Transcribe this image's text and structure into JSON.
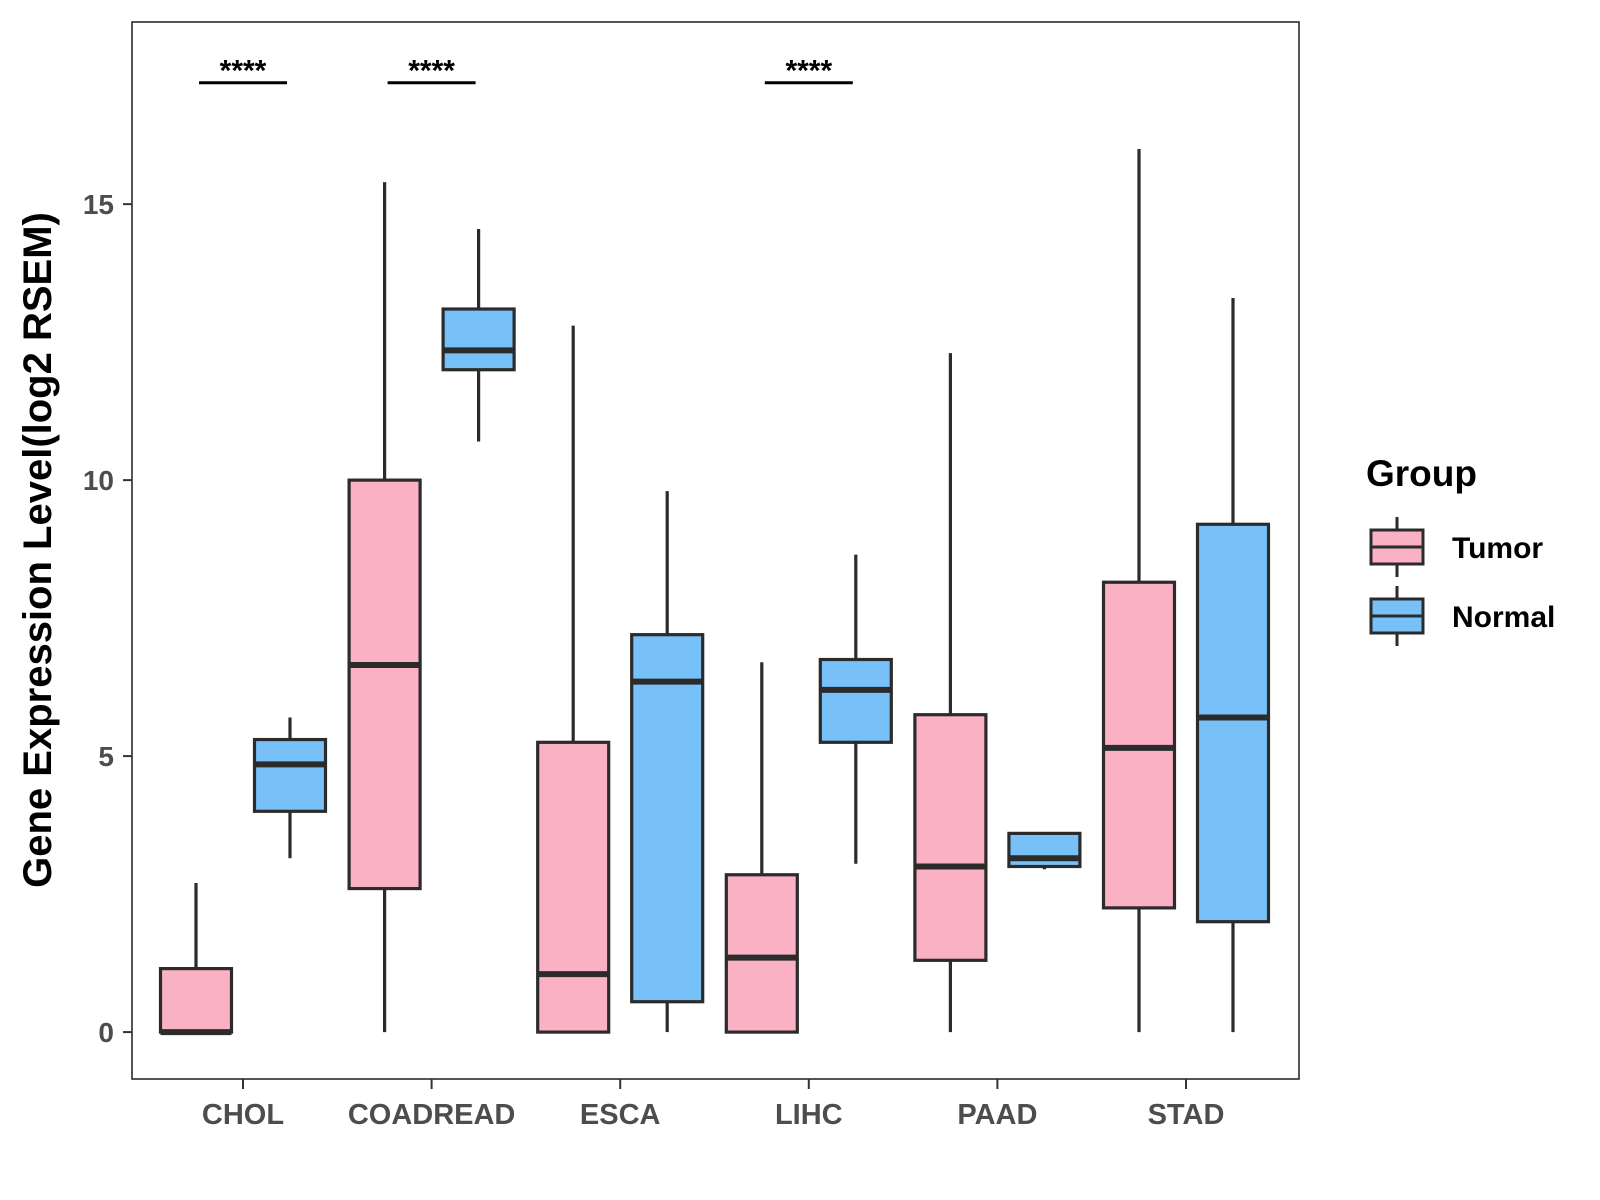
{
  "chart_data": {
    "type": "boxplot",
    "ylabel": "Gene Expression Level(log2 RSEM)",
    "xlabel": "",
    "ylim": [
      -0.85,
      18.3
    ],
    "yticks": [
      0,
      5,
      10,
      15
    ],
    "ytick_labels": [
      "0",
      "5",
      "10",
      "15"
    ],
    "categories": [
      "CHOL",
      "COADREAD",
      "ESCA",
      "LIHC",
      "PAAD",
      "STAD"
    ],
    "legend": {
      "title": "Group",
      "position": "right",
      "entries": [
        {
          "name": "Tumor",
          "color": "#fbb1c4"
        },
        {
          "name": "Normal",
          "color": "#77c1f8"
        }
      ]
    },
    "series": [
      {
        "name": "Tumor",
        "color": "#fbb1c4",
        "boxes": [
          {
            "category": "CHOL",
            "min": 0.0,
            "q1": 0.0,
            "median": 0.0,
            "q3": 1.15,
            "max": 2.7
          },
          {
            "category": "COADREAD",
            "min": 0.0,
            "q1": 2.6,
            "median": 6.65,
            "q3": 10.0,
            "max": 15.4
          },
          {
            "category": "ESCA",
            "min": 0.0,
            "q1": 0.0,
            "median": 1.05,
            "q3": 5.25,
            "max": 12.8
          },
          {
            "category": "LIHC",
            "min": 0.0,
            "q1": 0.0,
            "median": 1.35,
            "q3": 2.85,
            "max": 6.7
          },
          {
            "category": "PAAD",
            "min": 0.0,
            "q1": 1.3,
            "median": 3.0,
            "q3": 5.75,
            "max": 12.3
          },
          {
            "category": "STAD",
            "min": 0.0,
            "q1": 2.25,
            "median": 5.15,
            "q3": 8.15,
            "max": 16.0
          }
        ]
      },
      {
        "name": "Normal",
        "color": "#77c1f8",
        "boxes": [
          {
            "category": "CHOL",
            "min": 3.15,
            "q1": 4.0,
            "median": 4.85,
            "q3": 5.3,
            "max": 5.7
          },
          {
            "category": "COADREAD",
            "min": 10.7,
            "q1": 12.0,
            "median": 12.35,
            "q3": 13.1,
            "max": 14.55
          },
          {
            "category": "ESCA",
            "min": 0.0,
            "q1": 0.55,
            "median": 6.35,
            "q3": 7.2,
            "max": 9.8
          },
          {
            "category": "LIHC",
            "min": 3.05,
            "q1": 5.25,
            "median": 6.2,
            "q3": 6.75,
            "max": 8.65
          },
          {
            "category": "PAAD",
            "min": 2.95,
            "q1": 3.0,
            "median": 3.15,
            "q3": 3.6,
            "max": 3.6
          },
          {
            "category": "STAD",
            "min": 0.0,
            "q1": 2.0,
            "median": 5.7,
            "q3": 9.2,
            "max": 13.3
          }
        ]
      }
    ],
    "annotations": [
      {
        "category": "CHOL",
        "text": "****",
        "y": 17.2
      },
      {
        "category": "COADREAD",
        "text": "****",
        "y": 17.2
      },
      {
        "category": "LIHC",
        "text": "****",
        "y": 17.2
      }
    ]
  }
}
